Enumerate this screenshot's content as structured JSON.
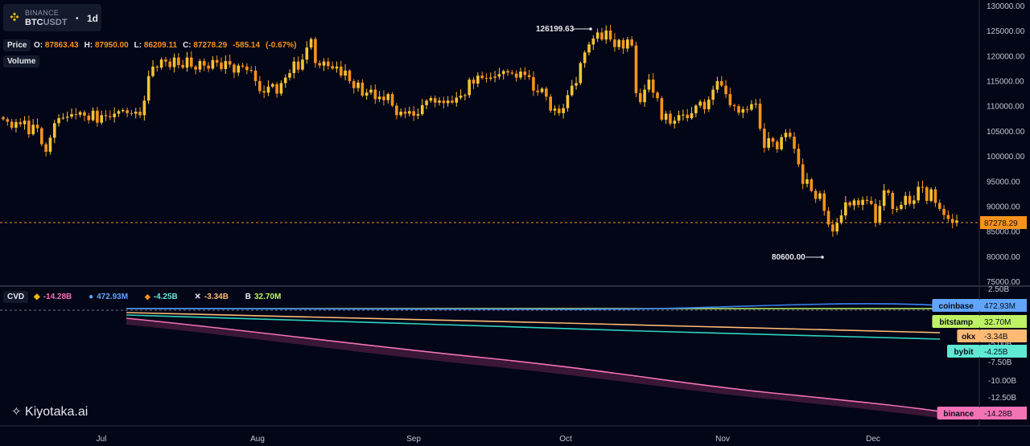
{
  "symbol": {
    "exchange": "BINANCE",
    "pair_base": "BTC",
    "pair_quote": "USDT",
    "timeframe": "1d",
    "dot": "•"
  },
  "labels": {
    "price": "Price",
    "volume": "Volume",
    "cvd": "CVD"
  },
  "ohlc": {
    "o_label": "O:",
    "o": "87863.43",
    "h_label": "H:",
    "h": "87950.00",
    "l_label": "L:",
    "l": "86209.11",
    "c_label": "C:",
    "c": "87278.29",
    "change": "-585.14",
    "change_pct": "(-0.67%)"
  },
  "cvd_legend": [
    {
      "icon": "binance-logo-icon",
      "value": "-14.28B",
      "color": "#f472b6"
    },
    {
      "icon": "coinbase-logo-icon",
      "value": "472.93M",
      "color": "#60a5fa"
    },
    {
      "icon": "bybit-logo-icon",
      "value": "-4.25B",
      "color": "#5eead4"
    },
    {
      "icon": "okx-logo-icon",
      "value": "-3.34B",
      "color": "#fdba74"
    },
    {
      "icon": "bitstamp-logo-icon",
      "value": "32.70M",
      "color": "#bef264"
    }
  ],
  "price_axis": [
    "130000.00",
    "125000.00",
    "120000.00",
    "115000.00",
    "110000.00",
    "105000.00",
    "100000.00",
    "95000.00",
    "90000.00",
    "85000.00",
    "80000.00",
    "75000.00"
  ],
  "cvd_axis": [
    "2.50B",
    "-2.50B",
    "-5.00B",
    "-7.50B",
    "-10.00B",
    "-12.50B"
  ],
  "time_axis": [
    "Jul",
    "Aug",
    "Sep",
    "Oct",
    "Nov",
    "Dec"
  ],
  "last_price": "87278.29",
  "high_annotation": "126199.63",
  "low_annotation": "80600.00",
  "exchange_badges": [
    {
      "name": "coinbase",
      "value": "472.93M",
      "color": "#60a5fa"
    },
    {
      "name": "bitstamp",
      "value": "32.70M",
      "color": "#bef264"
    },
    {
      "name": "okx",
      "value": "-3.34B",
      "color": "#fdba74"
    },
    {
      "name": "bybit",
      "value": "-4.25B",
      "color": "#5eead4"
    },
    {
      "name": "binance",
      "value": "-14.28B",
      "color": "#f472b6"
    }
  ],
  "watermark": "Kiyotaka.ai",
  "colors": {
    "background": "#020617",
    "up": "#f7c531",
    "down": "#f7931a",
    "accent": "#f7931a"
  },
  "chart_data": [
    {
      "type": "candlestick",
      "title": "BTCUSDT 1d",
      "ylim": [
        75000,
        130000
      ],
      "x_ticks": [
        "Jul",
        "Aug",
        "Sep",
        "Oct",
        "Nov",
        "Dec"
      ],
      "closes": [
        107500,
        107000,
        105800,
        106900,
        106500,
        107200,
        104500,
        106400,
        105700,
        102500,
        101000,
        103800,
        106700,
        107700,
        107800,
        108000,
        108500,
        108400,
        108900,
        108200,
        107300,
        109200,
        106800,
        108300,
        108100,
        107900,
        108600,
        109100,
        109300,
        108700,
        108600,
        109000,
        108300,
        111200,
        116100,
        118000,
        117800,
        119400,
        119000,
        117900,
        119800,
        118300,
        117800,
        119800,
        118000,
        117400,
        119100,
        118200,
        117600,
        119300,
        118800,
        117500,
        119100,
        118400,
        116800,
        118200,
        118000,
        117300,
        117200,
        115100,
        113100,
        112800,
        114000,
        114500,
        112600,
        114700,
        115800,
        116700,
        119000,
        117400,
        119400,
        121800,
        123500,
        118700,
        118200,
        119000,
        118100,
        117600,
        118000,
        116200,
        117200,
        115100,
        113700,
        114800,
        112200,
        112800,
        113400,
        111500,
        112000,
        111300,
        112500,
        110200,
        108300,
        109000,
        108600,
        109100,
        108200,
        108500,
        110300,
        111200,
        111700,
        110800,
        111200,
        110700,
        111200,
        110800,
        111800,
        112200,
        112300,
        115400,
        114600,
        116200,
        115700,
        115600,
        115800,
        116000,
        116500,
        117100,
        116800,
        116600,
        115800,
        117000,
        116300,
        115900,
        113200,
        112900,
        113600,
        112000,
        109200,
        109600,
        108700,
        109700,
        112300,
        114200,
        114700,
        118700,
        120800,
        122400,
        123600,
        124800,
        123400,
        125200,
        123400,
        121900,
        123300,
        121600,
        123400,
        122200,
        112700,
        110900,
        113400,
        115400,
        112800,
        111700,
        107400,
        108600,
        106600,
        107200,
        108300,
        108400,
        107700,
        108700,
        110200,
        111000,
        109500,
        111400,
        113400,
        115100,
        114200,
        112500,
        110300,
        110100,
        108800,
        109500,
        109400,
        110500,
        110600,
        105600,
        101800,
        103700,
        103000,
        101500,
        103900,
        104800,
        104000,
        101600,
        98500,
        94600,
        95500,
        93200,
        91600,
        92700,
        89200,
        86500,
        85100,
        86800,
        88300,
        90900,
        90300,
        91300,
        90400,
        91400,
        91200,
        90600,
        86800,
        90200,
        93300,
        92800,
        89600,
        89600,
        90400,
        92200,
        90600,
        91300,
        94000,
        93900,
        91200,
        93500,
        90800,
        89600,
        88400,
        87600,
        86800,
        87300
      ]
    },
    {
      "type": "line",
      "title": "CVD",
      "ylim": [
        -15,
        2.5
      ],
      "y_unit": "B",
      "series": [
        {
          "name": "coinbase",
          "last": "472.93M"
        },
        {
          "name": "bitstamp",
          "last": "32.70M"
        },
        {
          "name": "okx",
          "last": "-3.34B"
        },
        {
          "name": "bybit",
          "last": "-4.25B"
        },
        {
          "name": "binance",
          "last": "-14.28B"
        }
      ]
    }
  ]
}
